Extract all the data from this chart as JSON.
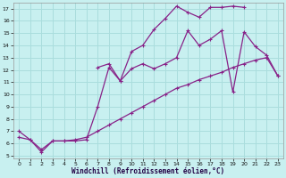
{
  "xlabel": "Windchill (Refroidissement éolien,°C)",
  "background_color": "#c8f0f0",
  "grid_color": "#aadddd",
  "line_color": "#882288",
  "xlim": [
    -0.5,
    23.5
  ],
  "ylim": [
    4.8,
    17.5
  ],
  "xticks": [
    0,
    1,
    2,
    3,
    4,
    5,
    6,
    7,
    8,
    9,
    10,
    11,
    12,
    13,
    14,
    15,
    16,
    17,
    18,
    19,
    20,
    21,
    22,
    23
  ],
  "yticks": [
    5,
    6,
    7,
    8,
    9,
    10,
    11,
    12,
    13,
    14,
    15,
    16,
    17
  ],
  "curve1_x": [
    0,
    1,
    2,
    3,
    4,
    5,
    6,
    7,
    8,
    9,
    10,
    11,
    12,
    13,
    14,
    15,
    16,
    17,
    18,
    19,
    20
  ],
  "curve1_y": [
    7.0,
    6.3,
    5.3,
    6.2,
    6.2,
    6.2,
    6.3,
    9.0,
    12.2,
    11.1,
    13.5,
    14.0,
    15.3,
    16.2,
    17.2,
    16.7,
    16.3,
    17.1,
    17.1,
    17.2,
    17.1
  ],
  "curve2_x": [
    7,
    8,
    9,
    10,
    11,
    12,
    13,
    14,
    15,
    16,
    17,
    18,
    19,
    20,
    21,
    22,
    23
  ],
  "curve2_y": [
    12.2,
    12.5,
    11.1,
    12.1,
    12.5,
    12.1,
    12.5,
    13.0,
    15.2,
    14.0,
    14.5,
    15.2,
    10.2,
    15.1,
    13.9,
    13.2,
    11.5
  ],
  "curve3_x": [
    0,
    1,
    2,
    3,
    4,
    5,
    6,
    7,
    8,
    9,
    10,
    11,
    12,
    13,
    14,
    15,
    16,
    17,
    18,
    19,
    20,
    21,
    22,
    23
  ],
  "curve3_y": [
    6.5,
    6.3,
    5.5,
    6.2,
    6.2,
    6.3,
    6.5,
    7.0,
    7.5,
    8.0,
    8.5,
    9.0,
    9.5,
    10.0,
    10.5,
    10.8,
    11.2,
    11.5,
    11.8,
    12.2,
    12.5,
    12.8,
    13.0,
    11.5
  ]
}
